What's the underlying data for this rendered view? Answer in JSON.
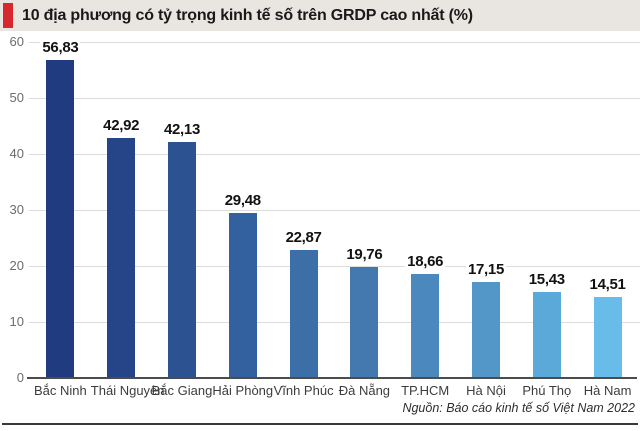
{
  "header": {
    "title": "10 địa phương có tỷ trọng kinh tế số trên GRDP cao nhất (%)",
    "accent_color": "#d7282f",
    "background_color": "#e9e6e2"
  },
  "source_note": "Nguồn: Báo cáo kinh tế số Việt Nam 2022",
  "chart_data": {
    "type": "bar",
    "title": "10 địa phương có tỷ trọng kinh tế số trên GRDP cao nhất (%)",
    "categories": [
      "Bắc Ninh",
      "Thái Nguyên",
      "Bắc Giang",
      "Hải Phòng",
      "Vĩnh Phúc",
      "Đà Nẵng",
      "TP.HCM",
      "Hà Nội",
      "Phú Thọ",
      "Hà Nam"
    ],
    "values": [
      56.83,
      42.92,
      42.13,
      29.48,
      22.87,
      19.76,
      18.66,
      17.15,
      15.43,
      14.51
    ],
    "value_labels": [
      "56,83",
      "42,92",
      "42,13",
      "29,48",
      "22,87",
      "19,76",
      "18,66",
      "17,15",
      "15,43",
      "14,51"
    ],
    "bar_colors": [
      "#203b80",
      "#264589",
      "#2c5292",
      "#33619f",
      "#3c6ea8",
      "#4479af",
      "#4b88bd",
      "#5397c9",
      "#5aa9d9",
      "#68bce9"
    ],
    "y_ticks": [
      0,
      10,
      20,
      30,
      40,
      50,
      60
    ],
    "ylim": [
      0,
      60
    ],
    "grid": true,
    "gridline_color": "#dcdcdc",
    "xlabel": "",
    "ylabel": "",
    "legend": null,
    "source": "Nguồn: Báo cáo kinh tế số Việt Nam 2022"
  }
}
